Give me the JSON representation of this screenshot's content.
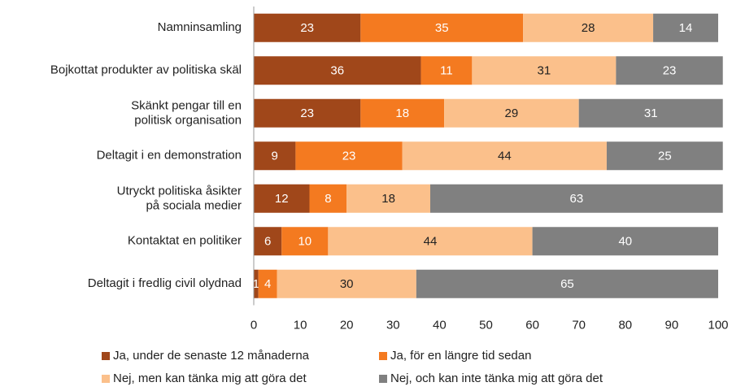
{
  "chart_data": {
    "type": "stacked_bar_horizontal",
    "categories": [
      "Namninsamling",
      "Bojkottat produkter av politiska skäl",
      "Skänkt pengar till en\npolitisk organisation",
      "Deltagit i en demonstration",
      "Utryckt politiska åsikter\npå sociala medier",
      "Kontaktat en politiker",
      "Deltagit i fredlig civil olydnad"
    ],
    "series": [
      {
        "name": "Ja, under de senaste 12 månaderna",
        "color": "#a0471a",
        "label_color": "#ffffff",
        "values": [
          23,
          36,
          23,
          9,
          12,
          6,
          1
        ]
      },
      {
        "name": "Ja, för en längre tid sedan",
        "color": "#f47a20",
        "label_color": "#ffffff",
        "values": [
          35,
          11,
          18,
          23,
          8,
          10,
          4
        ]
      },
      {
        "name": "Nej, men kan tänka mig att göra det",
        "color": "#fbc08b",
        "label_color": "#222222",
        "values": [
          28,
          31,
          29,
          44,
          18,
          44,
          30
        ]
      },
      {
        "name": "Nej, och kan inte tänka mig att göra det",
        "color": "#808080",
        "label_color": "#ffffff",
        "values": [
          14,
          23,
          31,
          25,
          63,
          40,
          65
        ]
      }
    ],
    "xlim": [
      0,
      100
    ],
    "xticks": [
      0,
      10,
      20,
      30,
      40,
      50,
      60,
      70,
      80,
      90,
      100
    ],
    "grid": false
  }
}
